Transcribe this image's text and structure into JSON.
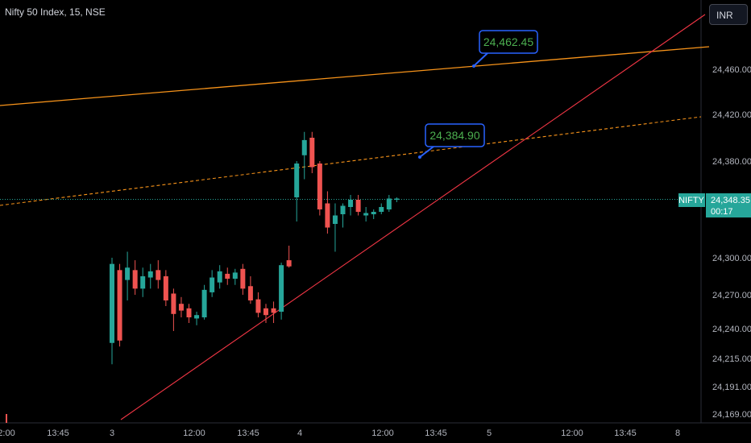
{
  "symbol_title": "Nifty 50 Index, 15, NSE",
  "currency": "INR",
  "price_tag": {
    "symbol": "NIFTY",
    "price": "24,348.35",
    "countdown": "00:17"
  },
  "colors": {
    "up": "#26a69a",
    "down": "#ef5350",
    "orange": "#f7931a",
    "red_line": "#f23645",
    "callout": "#2962ff",
    "callout_text": "#4caf50"
  },
  "chart_data": {
    "type": "candlestick",
    "title": "Nifty 50 Index, 15, NSE",
    "y_ticks": [
      "24,460.00",
      "24,420.00",
      "24,380.00",
      "24,300.00",
      "24,270.00",
      "24,240.00",
      "24,215.00",
      "24,191.00",
      "24,169.00"
    ],
    "x_ticks": [
      "2:00",
      "13:45",
      "3",
      "12:00",
      "13:45",
      "4",
      "12:00",
      "13:45",
      "5",
      "12:00",
      "13:45",
      "8"
    ],
    "grid": false,
    "last_price": 24348.35,
    "annotations": [
      {
        "label": "24,462.45",
        "line": "solid-orange"
      },
      {
        "label": "24,384.90",
        "line": "dashed-orange"
      }
    ],
    "candles": [
      {
        "o": 24228,
        "h": 24300,
        "l": 24210,
        "c": 24295
      },
      {
        "o": 24290,
        "h": 24295,
        "l": 24225,
        "c": 24230
      },
      {
        "o": 24282,
        "h": 24305,
        "l": 24265,
        "c": 24292
      },
      {
        "o": 24290,
        "h": 24298,
        "l": 24270,
        "c": 24275
      },
      {
        "o": 24275,
        "h": 24292,
        "l": 24268,
        "c": 24285
      },
      {
        "o": 24284,
        "h": 24295,
        "l": 24275,
        "c": 24289
      },
      {
        "o": 24290,
        "h": 24298,
        "l": 24275,
        "c": 24282
      },
      {
        "o": 24285,
        "h": 24290,
        "l": 24260,
        "c": 24265
      },
      {
        "o": 24271,
        "h": 24275,
        "l": 24238,
        "c": 24253
      },
      {
        "o": 24262,
        "h": 24268,
        "l": 24250,
        "c": 24256
      },
      {
        "o": 24258,
        "h": 24262,
        "l": 24245,
        "c": 24250
      },
      {
        "o": 24249,
        "h": 24255,
        "l": 24243,
        "c": 24252
      },
      {
        "o": 24250,
        "h": 24278,
        "l": 24248,
        "c": 24274
      },
      {
        "o": 24272,
        "h": 24290,
        "l": 24268,
        "c": 24284
      },
      {
        "o": 24280,
        "h": 24294,
        "l": 24275,
        "c": 24289
      },
      {
        "o": 24287,
        "h": 24292,
        "l": 24278,
        "c": 24283
      },
      {
        "o": 24283,
        "h": 24291,
        "l": 24278,
        "c": 24288
      },
      {
        "o": 24291,
        "h": 24295,
        "l": 24270,
        "c": 24275
      },
      {
        "o": 24277,
        "h": 24285,
        "l": 24262,
        "c": 24265
      },
      {
        "o": 24266,
        "h": 24272,
        "l": 24250,
        "c": 24254
      },
      {
        "o": 24258,
        "h": 24262,
        "l": 24245,
        "c": 24252
      },
      {
        "o": 24258,
        "h": 24264,
        "l": 24245,
        "c": 24254
      },
      {
        "o": 24255,
        "h": 24296,
        "l": 24248,
        "c": 24294
      },
      {
        "o": 24298,
        "h": 24310,
        "l": 24292,
        "c": 24293
      },
      {
        "o": 24350,
        "h": 24380,
        "l": 24330,
        "c": 24378
      },
      {
        "o": 24385,
        "h": 24405,
        "l": 24365,
        "c": 24398
      },
      {
        "o": 24400,
        "h": 24405,
        "l": 24370,
        "c": 24375
      },
      {
        "o": 24378,
        "h": 24380,
        "l": 24335,
        "c": 24340
      },
      {
        "o": 24345,
        "h": 24355,
        "l": 24320,
        "c": 24325
      },
      {
        "o": 24328,
        "h": 24345,
        "l": 24305,
        "c": 24335
      },
      {
        "o": 24336,
        "h": 24345,
        "l": 24325,
        "c": 24343
      },
      {
        "o": 24342,
        "h": 24352,
        "l": 24335,
        "c": 24348
      },
      {
        "o": 24348,
        "h": 24352,
        "l": 24335,
        "c": 24338
      },
      {
        "o": 24335,
        "h": 24342,
        "l": 24330,
        "c": 24337
      },
      {
        "o": 24336,
        "h": 24340,
        "l": 24332,
        "c": 24338
      },
      {
        "o": 24338,
        "h": 24345,
        "l": 24336,
        "c": 24342
      },
      {
        "o": 24340,
        "h": 24352,
        "l": 24338,
        "c": 24349
      },
      {
        "o": 24348,
        "h": 24350,
        "l": 24346,
        "c": 24349
      }
    ]
  }
}
